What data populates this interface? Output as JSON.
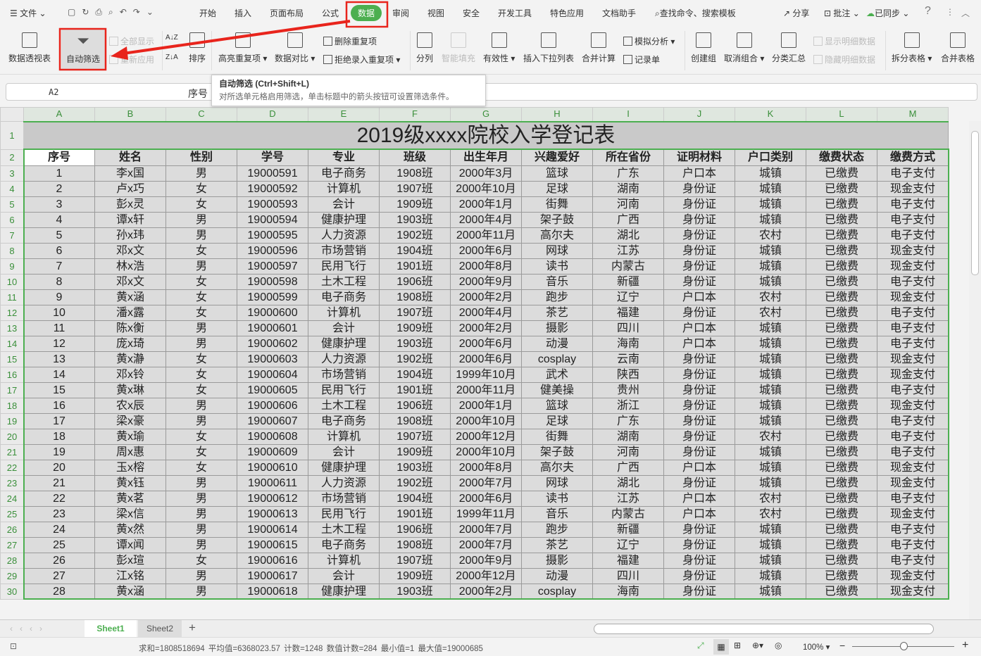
{
  "menubar": {
    "file": "文件",
    "tabs": [
      "开始",
      "插入",
      "页面布局",
      "公式",
      "数据",
      "审阅",
      "视图",
      "安全",
      "开发工具",
      "特色应用",
      "文档助手"
    ],
    "active_tab": "数据",
    "search": "查找命令、搜索模板",
    "share": "分享",
    "comment": "批注",
    "sync": "已同步",
    "help": "?",
    "accent": "#4caf50"
  },
  "ribbon": {
    "pivot": "数据透视表",
    "autofilter": "自动筛选",
    "show_all": "全部显示",
    "reapply": "重新应用",
    "sort": "排序",
    "highlight_dup": "高亮重复项",
    "compare": "数据对比",
    "remove_dup": "删除重复项",
    "reject_dup": "拒绝录入重复项",
    "split_col": "分列",
    "smart_fill": "智能填充",
    "validity": "有效性",
    "dropdown": "插入下拉列表",
    "consolidate": "合并计算",
    "whatif": "模拟分析",
    "record": "记录单",
    "group": "创建组",
    "ungroup": "取消组合",
    "subtotal": "分类汇总",
    "show_detail": "显示明细数据",
    "hide_detail": "隐藏明细数据",
    "split_table": "拆分表格",
    "merge_table": "合并表格"
  },
  "tooltip": {
    "title": "自动筛选 (Ctrl+Shift+L)",
    "body": "对所选单元格启用筛选，单击标题中的箭头按钮可设置筛选条件。"
  },
  "formula_bar": {
    "cell_ref": "A2",
    "content": "序号"
  },
  "sheet": {
    "columns": [
      "A",
      "B",
      "C",
      "D",
      "E",
      "F",
      "G",
      "H",
      "I",
      "J",
      "K",
      "L",
      "M"
    ],
    "title": "2019级xxxx院校入学登记表",
    "headers": [
      "序号",
      "姓名",
      "性别",
      "学号",
      "专业",
      "班级",
      "出生年月",
      "兴趣爱好",
      "所在省份",
      "证明材料",
      "户口类别",
      "缴费状态",
      "缴费方式"
    ],
    "rows": [
      [
        "1",
        "李x国",
        "男",
        "19000591",
        "电子商务",
        "1908班",
        "2000年3月",
        "篮球",
        "广东",
        "户口本",
        "城镇",
        "已缴费",
        "电子支付"
      ],
      [
        "2",
        "卢x巧",
        "女",
        "19000592",
        "计算机",
        "1907班",
        "2000年10月",
        "足球",
        "湖南",
        "身份证",
        "城镇",
        "已缴费",
        "现金支付"
      ],
      [
        "3",
        "彭x灵",
        "女",
        "19000593",
        "会计",
        "1909班",
        "2000年1月",
        "街舞",
        "河南",
        "身份证",
        "城镇",
        "已缴费",
        "电子支付"
      ],
      [
        "4",
        "谭x轩",
        "男",
        "19000594",
        "健康护理",
        "1903班",
        "2000年4月",
        "架子鼓",
        "广西",
        "身份证",
        "城镇",
        "已缴费",
        "电子支付"
      ],
      [
        "5",
        "孙x玮",
        "男",
        "19000595",
        "人力资源",
        "1902班",
        "2000年11月",
        "高尔夫",
        "湖北",
        "身份证",
        "农村",
        "已缴费",
        "电子支付"
      ],
      [
        "6",
        "邓x文",
        "女",
        "19000596",
        "市场营销",
        "1904班",
        "2000年6月",
        "网球",
        "江苏",
        "身份证",
        "城镇",
        "已缴费",
        "现金支付"
      ],
      [
        "7",
        "林x浩",
        "男",
        "19000597",
        "民用飞行",
        "1901班",
        "2000年8月",
        "读书",
        "内蒙古",
        "身份证",
        "城镇",
        "已缴费",
        "现金支付"
      ],
      [
        "8",
        "邓x文",
        "女",
        "19000598",
        "土木工程",
        "1906班",
        "2000年9月",
        "音乐",
        "新疆",
        "身份证",
        "城镇",
        "已缴费",
        "电子支付"
      ],
      [
        "9",
        "黄x涵",
        "女",
        "19000599",
        "电子商务",
        "1908班",
        "2000年2月",
        "跑步",
        "辽宁",
        "户口本",
        "农村",
        "已缴费",
        "现金支付"
      ],
      [
        "10",
        "潘x露",
        "女",
        "19000600",
        "计算机",
        "1907班",
        "2000年4月",
        "茶艺",
        "福建",
        "身份证",
        "农村",
        "已缴费",
        "电子支付"
      ],
      [
        "11",
        "陈x衡",
        "男",
        "19000601",
        "会计",
        "1909班",
        "2000年2月",
        "摄影",
        "四川",
        "户口本",
        "城镇",
        "已缴费",
        "电子支付"
      ],
      [
        "12",
        "庞x琦",
        "男",
        "19000602",
        "健康护理",
        "1903班",
        "2000年6月",
        "动漫",
        "海南",
        "户口本",
        "城镇",
        "已缴费",
        "电子支付"
      ],
      [
        "13",
        "黄x瀞",
        "女",
        "19000603",
        "人力资源",
        "1902班",
        "2000年6月",
        "cosplay",
        "云南",
        "身份证",
        "城镇",
        "已缴费",
        "现金支付"
      ],
      [
        "14",
        "邓x铃",
        "女",
        "19000604",
        "市场营销",
        "1904班",
        "1999年10月",
        "武术",
        "陕西",
        "身份证",
        "城镇",
        "已缴费",
        "现金支付"
      ],
      [
        "15",
        "黄x琳",
        "女",
        "19000605",
        "民用飞行",
        "1901班",
        "2000年11月",
        "健美操",
        "贵州",
        "身份证",
        "城镇",
        "已缴费",
        "电子支付"
      ],
      [
        "16",
        "农x辰",
        "男",
        "19000606",
        "土木工程",
        "1906班",
        "2000年1月",
        "篮球",
        "浙江",
        "身份证",
        "城镇",
        "已缴费",
        "现金支付"
      ],
      [
        "17",
        "梁x豪",
        "男",
        "19000607",
        "电子商务",
        "1908班",
        "2000年10月",
        "足球",
        "广东",
        "身份证",
        "城镇",
        "已缴费",
        "电子支付"
      ],
      [
        "18",
        "黄x瑜",
        "女",
        "19000608",
        "计算机",
        "1907班",
        "2000年12月",
        "街舞",
        "湖南",
        "身份证",
        "农村",
        "已缴费",
        "电子支付"
      ],
      [
        "19",
        "周x惠",
        "女",
        "19000609",
        "会计",
        "1909班",
        "2000年10月",
        "架子鼓",
        "河南",
        "身份证",
        "城镇",
        "已缴费",
        "电子支付"
      ],
      [
        "20",
        "玉x榕",
        "女",
        "19000610",
        "健康护理",
        "1903班",
        "2000年8月",
        "高尔夫",
        "广西",
        "户口本",
        "城镇",
        "已缴费",
        "现金支付"
      ],
      [
        "21",
        "黄x钰",
        "男",
        "19000611",
        "人力资源",
        "1902班",
        "2000年7月",
        "网球",
        "湖北",
        "身份证",
        "城镇",
        "已缴费",
        "现金支付"
      ],
      [
        "22",
        "黄x茗",
        "男",
        "19000612",
        "市场营销",
        "1904班",
        "2000年6月",
        "读书",
        "江苏",
        "户口本",
        "农村",
        "已缴费",
        "电子支付"
      ],
      [
        "23",
        "梁x信",
        "男",
        "19000613",
        "民用飞行",
        "1901班",
        "1999年11月",
        "音乐",
        "内蒙古",
        "户口本",
        "农村",
        "已缴费",
        "现金支付"
      ],
      [
        "24",
        "黄x然",
        "男",
        "19000614",
        "土木工程",
        "1906班",
        "2000年7月",
        "跑步",
        "新疆",
        "身份证",
        "城镇",
        "已缴费",
        "电子支付"
      ],
      [
        "25",
        "谭x闻",
        "男",
        "19000615",
        "电子商务",
        "1908班",
        "2000年7月",
        "茶艺",
        "辽宁",
        "身份证",
        "城镇",
        "已缴费",
        "电子支付"
      ],
      [
        "26",
        "彭x瑄",
        "女",
        "19000616",
        "计算机",
        "1907班",
        "2000年9月",
        "摄影",
        "福建",
        "身份证",
        "城镇",
        "已缴费",
        "电子支付"
      ],
      [
        "27",
        "江x铭",
        "男",
        "19000617",
        "会计",
        "1909班",
        "2000年12月",
        "动漫",
        "四川",
        "身份证",
        "城镇",
        "已缴费",
        "现金支付"
      ],
      [
        "28",
        "黄x涵",
        "男",
        "19000618",
        "健康护理",
        "1903班",
        "2000年2月",
        "cosplay",
        "海南",
        "身份证",
        "城镇",
        "已缴费",
        "现金支付"
      ]
    ]
  },
  "sheet_tabs": [
    "Sheet1",
    "Sheet2"
  ],
  "active_sheet": "Sheet1",
  "status": {
    "sum": "求和=1808518694",
    "avg": "平均值=6368023.57",
    "count": "计数=1248",
    "num_count": "数值计数=284",
    "min": "最小值=1",
    "max": "最大值=19000685",
    "zoom": "100%"
  },
  "zoom_level_percent": 100
}
